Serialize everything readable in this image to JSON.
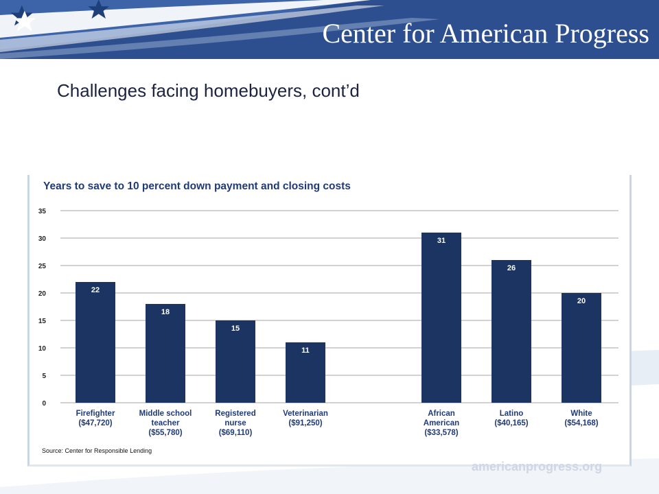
{
  "header": {
    "org_name": "Center for American Progress"
  },
  "slide": {
    "title": "Challenges facing homebuyers, cont’d"
  },
  "footer": {
    "watermark": "americanprogress.org"
  },
  "colors": {
    "banner": "#2d4f8f",
    "bar": "#1c3461",
    "title_text": "#1f3a78"
  },
  "chart_data": {
    "type": "bar",
    "title": "Years to save to 10 percent down payment and closing costs",
    "xlabel": "",
    "ylabel": "",
    "ylim": [
      0,
      35
    ],
    "yticks": [
      0,
      5,
      10,
      15,
      20,
      25,
      30,
      35
    ],
    "grid": true,
    "legend": "none",
    "source": "Source: Center for Responsible Lending",
    "categories": [
      [
        "Firefighter",
        "($47,720)"
      ],
      [
        "Middle school",
        "teacher",
        "($55,780)"
      ],
      [
        "Registered",
        "nurse",
        "($69,110)"
      ],
      [
        "Veterinarian",
        "($91,250)"
      ],
      [
        "African",
        "American",
        "($33,578)"
      ],
      [
        "Latino",
        "($40,165)"
      ],
      [
        "White",
        "($54,168)"
      ]
    ],
    "values": [
      22,
      18,
      15,
      11,
      31,
      26,
      20
    ]
  }
}
